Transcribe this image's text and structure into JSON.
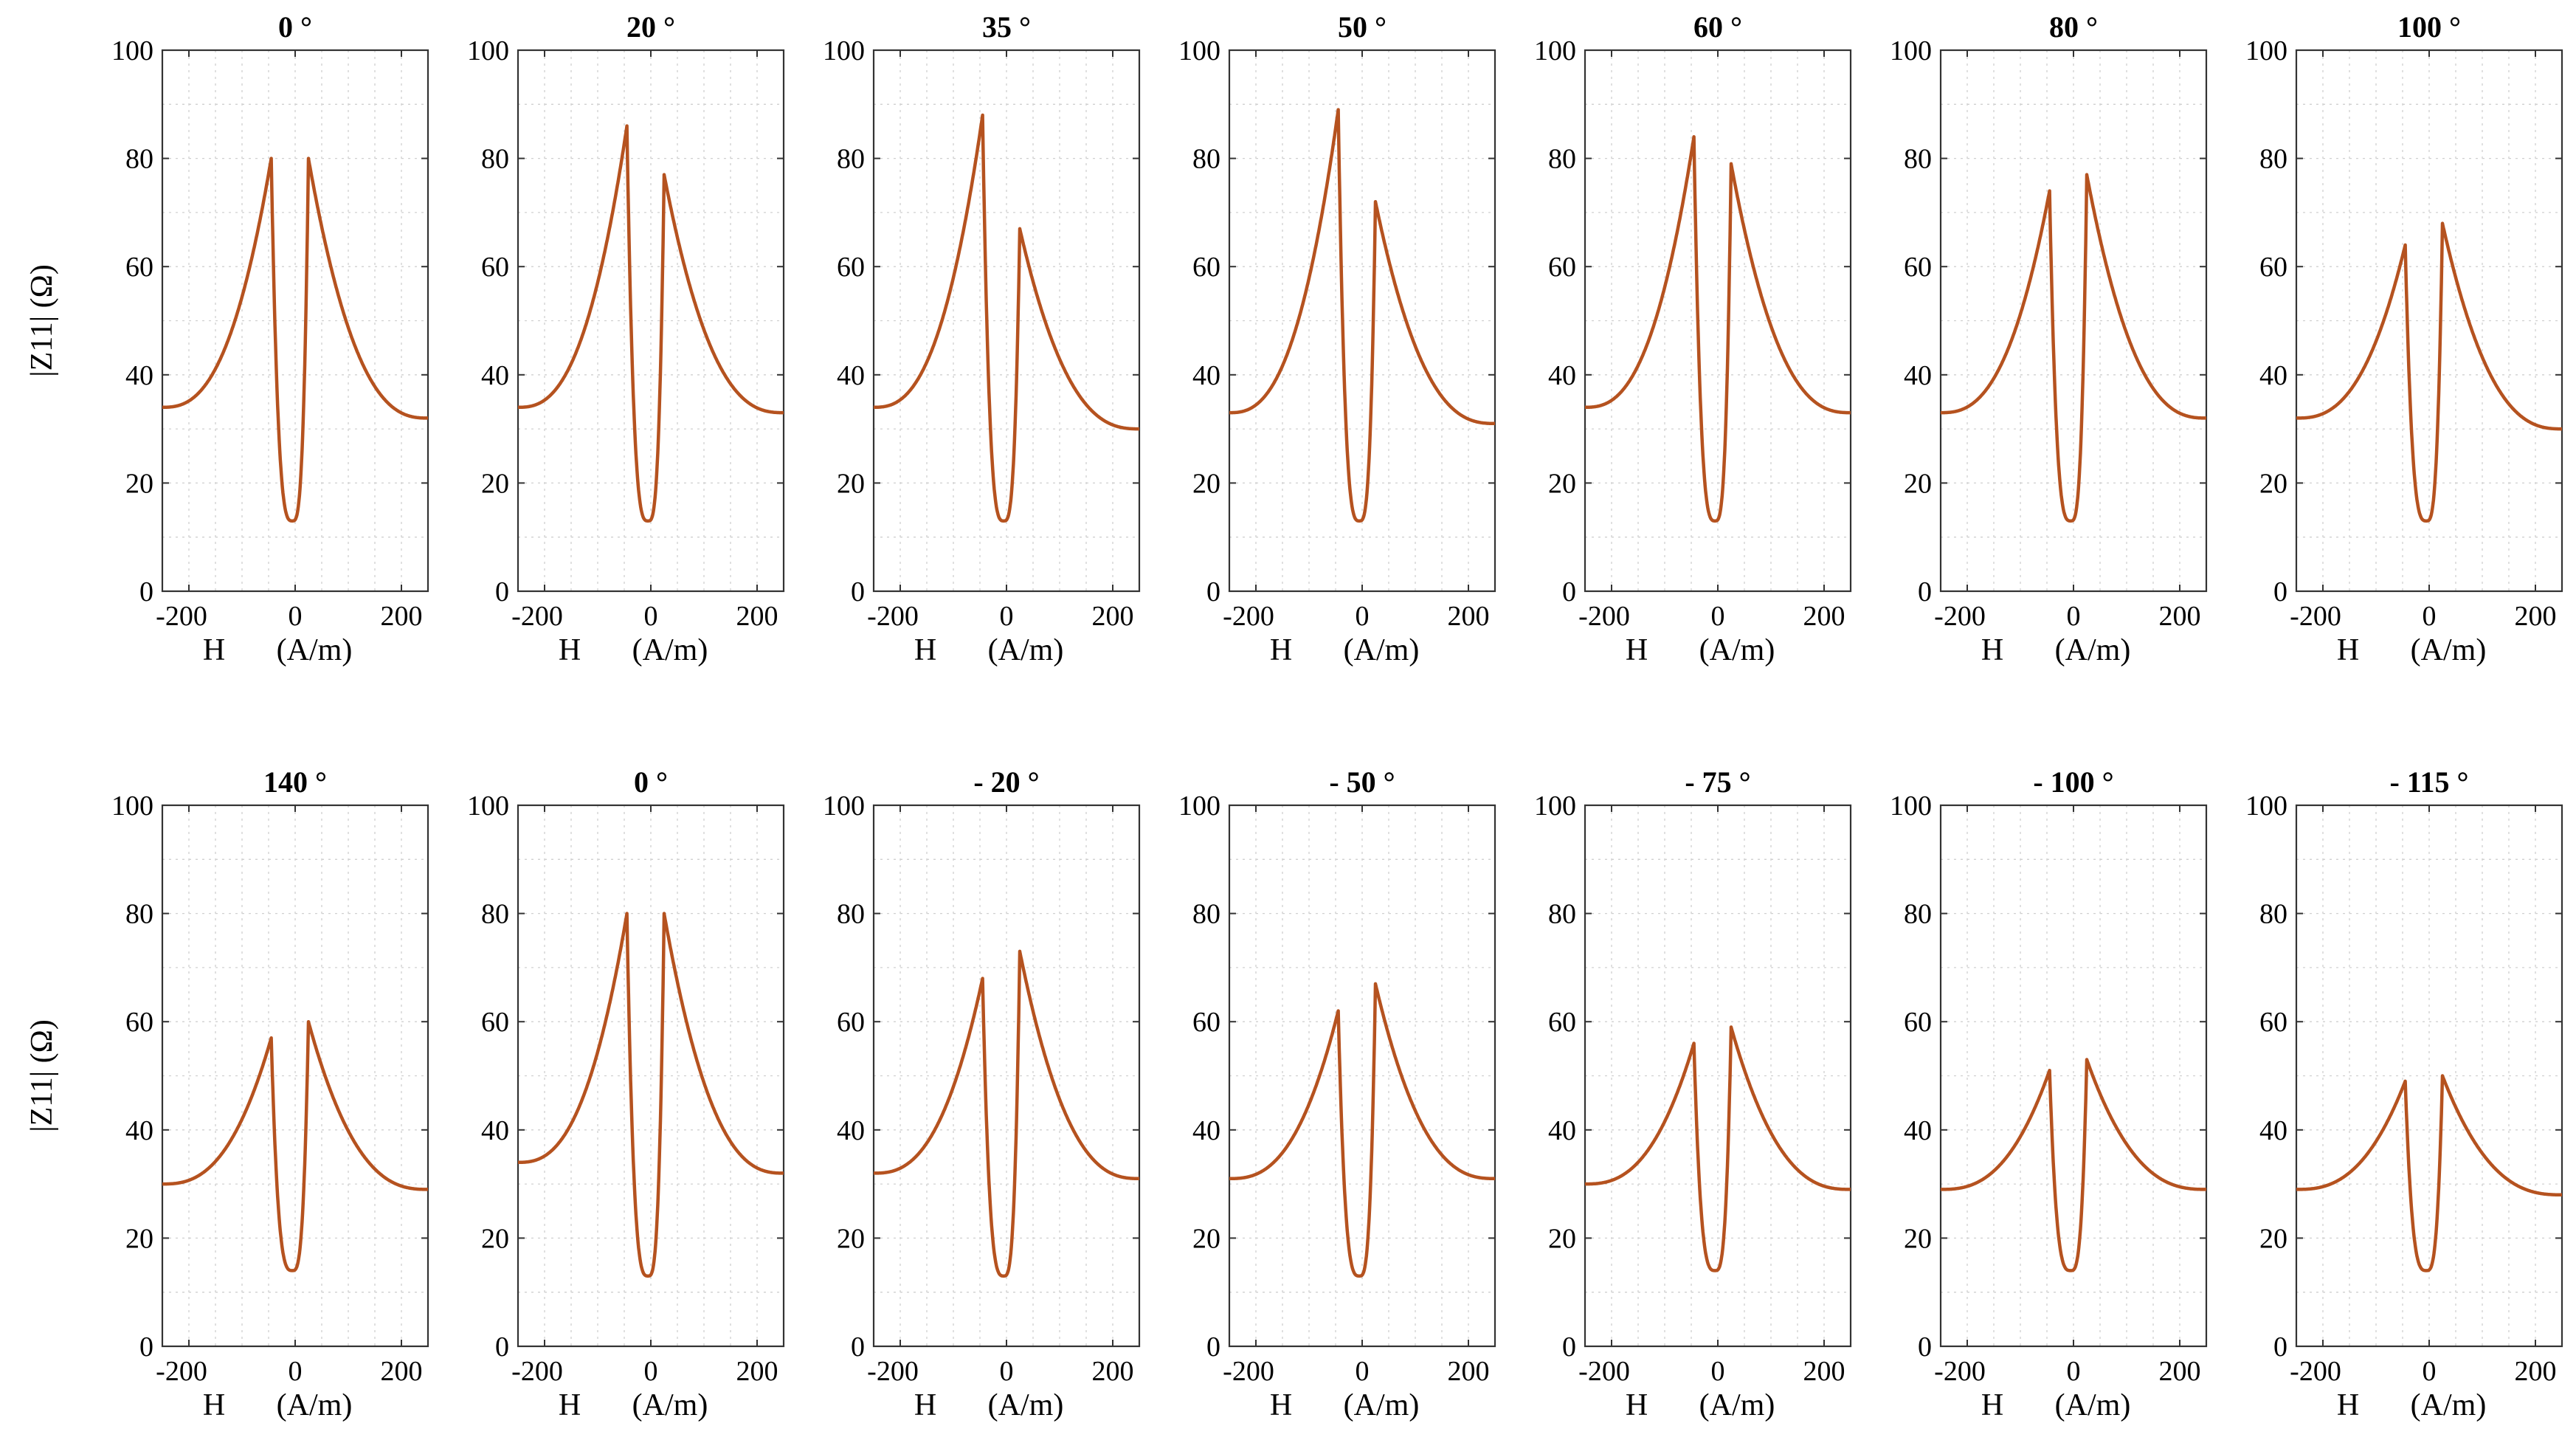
{
  "chart_data": {
    "type": "line",
    "xlabel_H": "H",
    "xlabel_unit": "(A/m)",
    "ylabel": "|Z11| (Ω)",
    "x_ticks": [
      -200,
      0,
      200
    ],
    "y_ticks": [
      0,
      20,
      40,
      60,
      80,
      100
    ],
    "xlim": [
      -250,
      250
    ],
    "ylim": [
      0,
      100
    ],
    "grid": true,
    "line_color": "#b5521f",
    "panels": [
      {
        "title": "0 °",
        "row": 0,
        "left_peak": {
          "x": -45,
          "y": 80
        },
        "right_peak": {
          "x": 25,
          "y": 80
        },
        "dip": {
          "x": -5,
          "y": 13
        },
        "y_at_xmin": 34,
        "y_at_xmax": 32
      },
      {
        "title": "20 °",
        "row": 0,
        "left_peak": {
          "x": -45,
          "y": 86
        },
        "right_peak": {
          "x": 25,
          "y": 77
        },
        "dip": {
          "x": -5,
          "y": 13
        },
        "y_at_xmin": 34,
        "y_at_xmax": 33
      },
      {
        "title": "35 °",
        "row": 0,
        "left_peak": {
          "x": -45,
          "y": 88
        },
        "right_peak": {
          "x": 25,
          "y": 67
        },
        "dip": {
          "x": -5,
          "y": 13
        },
        "y_at_xmin": 34,
        "y_at_xmax": 30
      },
      {
        "title": "50 °",
        "row": 0,
        "left_peak": {
          "x": -45,
          "y": 89
        },
        "right_peak": {
          "x": 25,
          "y": 72
        },
        "dip": {
          "x": -5,
          "y": 13
        },
        "y_at_xmin": 33,
        "y_at_xmax": 31
      },
      {
        "title": "60 °",
        "row": 0,
        "left_peak": {
          "x": -45,
          "y": 84
        },
        "right_peak": {
          "x": 25,
          "y": 79
        },
        "dip": {
          "x": -5,
          "y": 13
        },
        "y_at_xmin": 34,
        "y_at_xmax": 33
      },
      {
        "title": "80 °",
        "row": 0,
        "left_peak": {
          "x": -45,
          "y": 74
        },
        "right_peak": {
          "x": 25,
          "y": 77
        },
        "dip": {
          "x": -5,
          "y": 13
        },
        "y_at_xmin": 33,
        "y_at_xmax": 32
      },
      {
        "title": "100 °",
        "row": 0,
        "left_peak": {
          "x": -45,
          "y": 64
        },
        "right_peak": {
          "x": 25,
          "y": 68
        },
        "dip": {
          "x": -5,
          "y": 13
        },
        "y_at_xmin": 32,
        "y_at_xmax": 30
      },
      {
        "title": "140 °",
        "row": 1,
        "left_peak": {
          "x": -45,
          "y": 57
        },
        "right_peak": {
          "x": 25,
          "y": 60
        },
        "dip": {
          "x": -5,
          "y": 14
        },
        "y_at_xmin": 30,
        "y_at_xmax": 29
      },
      {
        "title": "0 °",
        "row": 1,
        "left_peak": {
          "x": -45,
          "y": 80
        },
        "right_peak": {
          "x": 25,
          "y": 80
        },
        "dip": {
          "x": -5,
          "y": 13
        },
        "y_at_xmin": 34,
        "y_at_xmax": 32
      },
      {
        "title": "- 20 °",
        "row": 1,
        "left_peak": {
          "x": -45,
          "y": 68
        },
        "right_peak": {
          "x": 25,
          "y": 73
        },
        "dip": {
          "x": -5,
          "y": 13
        },
        "y_at_xmin": 32,
        "y_at_xmax": 31
      },
      {
        "title": "- 50 °",
        "row": 1,
        "left_peak": {
          "x": -45,
          "y": 62
        },
        "right_peak": {
          "x": 25,
          "y": 67
        },
        "dip": {
          "x": -5,
          "y": 13
        },
        "y_at_xmin": 31,
        "y_at_xmax": 31
      },
      {
        "title": "- 75 °",
        "row": 1,
        "left_peak": {
          "x": -45,
          "y": 56
        },
        "right_peak": {
          "x": 25,
          "y": 59
        },
        "dip": {
          "x": -5,
          "y": 14
        },
        "y_at_xmin": 30,
        "y_at_xmax": 29
      },
      {
        "title": "- 100 °",
        "row": 1,
        "left_peak": {
          "x": -45,
          "y": 51
        },
        "right_peak": {
          "x": 25,
          "y": 53
        },
        "dip": {
          "x": -5,
          "y": 14
        },
        "y_at_xmin": 29,
        "y_at_xmax": 29
      },
      {
        "title": "- 115 °",
        "row": 1,
        "left_peak": {
          "x": -45,
          "y": 49
        },
        "right_peak": {
          "x": 25,
          "y": 50
        },
        "dip": {
          "x": -5,
          "y": 14
        },
        "y_at_xmin": 29,
        "y_at_xmax": 28
      }
    ]
  }
}
